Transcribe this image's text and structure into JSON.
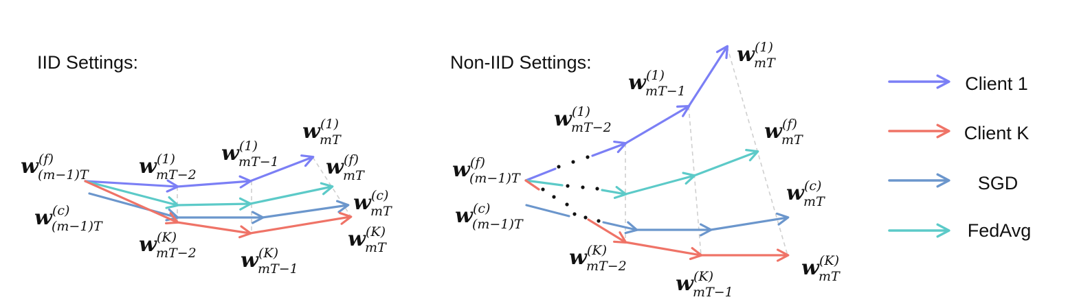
{
  "colors": {
    "client1": "#7b7ff5",
    "clientK": "#ef7367",
    "sgd": "#6b96cc",
    "fedavg": "#5ccac8",
    "guide": "#cfcfcf",
    "dots": "#111111"
  },
  "panels": {
    "iid": {
      "title": "IID Settings:",
      "labels": {
        "wf_prev": {
          "sym": "w",
          "sup": "(f)",
          "sub": "(m−1)T"
        },
        "wc_prev": {
          "sym": "w",
          "sup": "(c)",
          "sub": "(m−1)T"
        },
        "w1_t2": {
          "sym": "w",
          "sup": "(1)",
          "sub": "mT−2"
        },
        "wK_t2": {
          "sym": "w",
          "sup": "(K)",
          "sub": "mT−2"
        },
        "w1_t1": {
          "sym": "w",
          "sup": "(1)",
          "sub": "mT−1"
        },
        "wK_t1": {
          "sym": "w",
          "sup": "(K)",
          "sub": "mT−1"
        },
        "w1_T": {
          "sym": "w",
          "sup": "(1)",
          "sub": "mT"
        },
        "wf_T": {
          "sym": "w",
          "sup": "(f)",
          "sub": "mT"
        },
        "wc_T": {
          "sym": "w",
          "sup": "(c)",
          "sub": "mT"
        },
        "wK_T": {
          "sym": "w",
          "sup": "(K)",
          "sub": "mT"
        }
      }
    },
    "noniid": {
      "title": "Non-IID Settings:",
      "labels": {
        "wf_prev": {
          "sym": "w",
          "sup": "(f)",
          "sub": "(m−1)T"
        },
        "wc_prev": {
          "sym": "w",
          "sup": "(c)",
          "sub": "(m−1)T"
        },
        "w1_t2": {
          "sym": "w",
          "sup": "(1)",
          "sub": "mT−2"
        },
        "wK_t2": {
          "sym": "w",
          "sup": "(K)",
          "sub": "mT−2"
        },
        "w1_t1": {
          "sym": "w",
          "sup": "(1)",
          "sub": "mT−1"
        },
        "wK_t1": {
          "sym": "w",
          "sup": "(K)",
          "sub": "mT−1"
        },
        "w1_T": {
          "sym": "w",
          "sup": "(1)",
          "sub": "mT"
        },
        "wf_T": {
          "sym": "w",
          "sup": "(f)",
          "sub": "mT"
        },
        "wc_T": {
          "sym": "w",
          "sup": "(c)",
          "sub": "mT"
        },
        "wK_T": {
          "sym": "w",
          "sup": "(K)",
          "sub": "mT"
        }
      }
    }
  },
  "legend": {
    "client1": "Client 1",
    "clientK": "Client K",
    "sgd": "SGD",
    "fedavg": "FedAvg"
  }
}
